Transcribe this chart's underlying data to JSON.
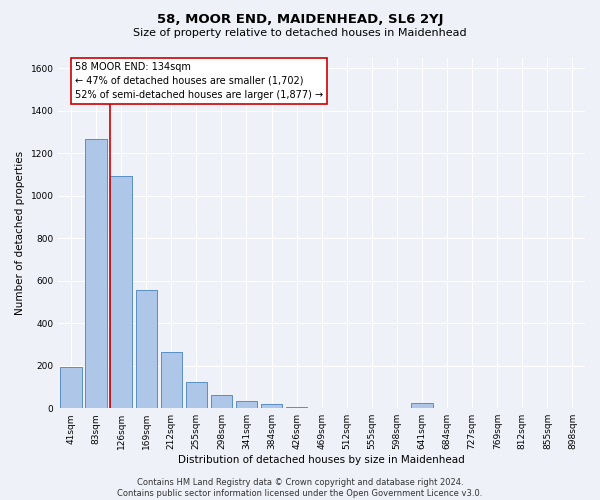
{
  "title": "58, MOOR END, MAIDENHEAD, SL6 2YJ",
  "subtitle": "Size of property relative to detached houses in Maidenhead",
  "xlabel": "Distribution of detached houses by size in Maidenhead",
  "ylabel": "Number of detached properties",
  "categories": [
    "41sqm",
    "83sqm",
    "126sqm",
    "169sqm",
    "212sqm",
    "255sqm",
    "298sqm",
    "341sqm",
    "384sqm",
    "426sqm",
    "469sqm",
    "512sqm",
    "555sqm",
    "598sqm",
    "641sqm",
    "684sqm",
    "727sqm",
    "769sqm",
    "812sqm",
    "855sqm",
    "898sqm"
  ],
  "values": [
    193,
    1265,
    1093,
    557,
    264,
    125,
    60,
    33,
    20,
    8,
    0,
    0,
    0,
    0,
    25,
    0,
    0,
    0,
    0,
    0,
    0
  ],
  "bar_color": "#aec6e8",
  "bar_edge_color": "#5a8fc2",
  "vline_color": "#cc0000",
  "annotation_text": "58 MOOR END: 134sqm\n← 47% of detached houses are smaller (1,702)\n52% of semi-detached houses are larger (1,877) →",
  "annotation_box_color": "#ffffff",
  "annotation_box_edge_color": "#cc0000",
  "ylim": [
    0,
    1650
  ],
  "yticks": [
    0,
    200,
    400,
    600,
    800,
    1000,
    1200,
    1400,
    1600
  ],
  "footer_line1": "Contains HM Land Registry data © Crown copyright and database right 2024.",
  "footer_line2": "Contains public sector information licensed under the Open Government Licence v3.0.",
  "background_color": "#eef2f8",
  "grid_color": "#ffffff",
  "title_fontsize": 9.5,
  "subtitle_fontsize": 8,
  "axis_label_fontsize": 7.5,
  "tick_fontsize": 6.5,
  "annotation_fontsize": 7,
  "footer_fontsize": 6
}
